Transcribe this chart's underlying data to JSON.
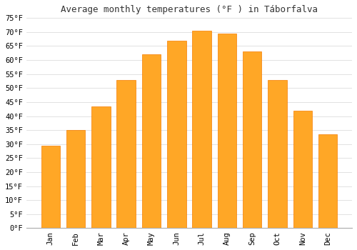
{
  "title": "Average monthly temperatures (°F ) in Táborfalva",
  "months": [
    "Jan",
    "Feb",
    "Mar",
    "Apr",
    "May",
    "Jun",
    "Jul",
    "Aug",
    "Sep",
    "Oct",
    "Nov",
    "Dec"
  ],
  "values": [
    29.5,
    35,
    43.5,
    53,
    62,
    67,
    70.5,
    69.5,
    63,
    53,
    42,
    33.5
  ],
  "bar_color": "#FFA726",
  "bar_edge_color": "#F57C00",
  "ylim": [
    0,
    75
  ],
  "yticks": [
    0,
    5,
    10,
    15,
    20,
    25,
    30,
    35,
    40,
    45,
    50,
    55,
    60,
    65,
    70,
    75
  ],
  "grid_color": "#dddddd",
  "background_color": "#ffffff",
  "plot_bg_color": "#ffffff",
  "title_fontsize": 9,
  "tick_fontsize": 7.5,
  "font_family": "monospace"
}
